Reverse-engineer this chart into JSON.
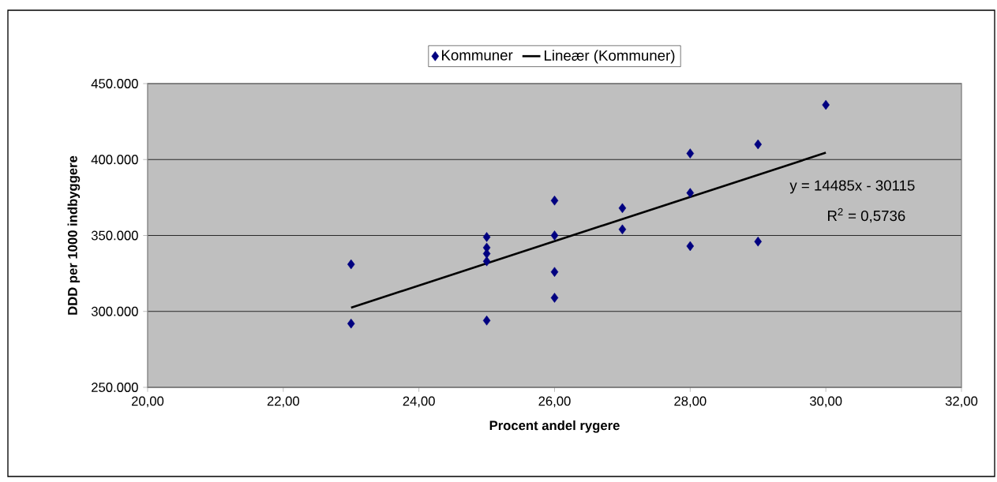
{
  "chart_data": {
    "type": "scatter",
    "xlabel": "Procent andel rygere",
    "ylabel": "DDD per 1000 indbyggere",
    "series": [
      {
        "name": "Kommuner",
        "color": "#000080",
        "marker": "diamond",
        "x": [
          23,
          23,
          25,
          25,
          25,
          25,
          25,
          26,
          26,
          26,
          26,
          27,
          27,
          28,
          28,
          28,
          29,
          29,
          30
        ],
        "values": [
          331000,
          292000,
          349000,
          342000,
          338000,
          333000,
          294000,
          373000,
          350000,
          326000,
          309000,
          368000,
          354000,
          404000,
          378000,
          343000,
          410000,
          346000,
          436000
        ]
      },
      {
        "name": "Lineær (Kommuner)",
        "type": "line",
        "color": "#000000",
        "line_style": "solid",
        "marker": "none",
        "x": [
          23,
          30
        ],
        "values": [
          302500,
          404500
        ]
      }
    ],
    "xlim": [
      20,
      32
    ],
    "xticks": [
      {
        "value": 20,
        "label": "20,00"
      },
      {
        "value": 22,
        "label": "22,00"
      },
      {
        "value": 24,
        "label": "24,00"
      },
      {
        "value": 26,
        "label": "26,00"
      },
      {
        "value": 28,
        "label": "28,00"
      },
      {
        "value": 30,
        "label": "30,00"
      },
      {
        "value": 32,
        "label": "32,00"
      }
    ],
    "ylim": [
      250000,
      450000
    ],
    "yticks": [
      {
        "value": 250000,
        "label": "250.000"
      },
      {
        "value": 300000,
        "label": "300.000"
      },
      {
        "value": 350000,
        "label": "350.000"
      },
      {
        "value": 400000,
        "label": "400.000"
      },
      {
        "value": 450000,
        "label": "450.000"
      }
    ],
    "grid": "y",
    "legend": "top",
    "annotations": [
      "y = 14485x - 30115",
      "R$^{2}$ = 0,5736"
    ]
  }
}
